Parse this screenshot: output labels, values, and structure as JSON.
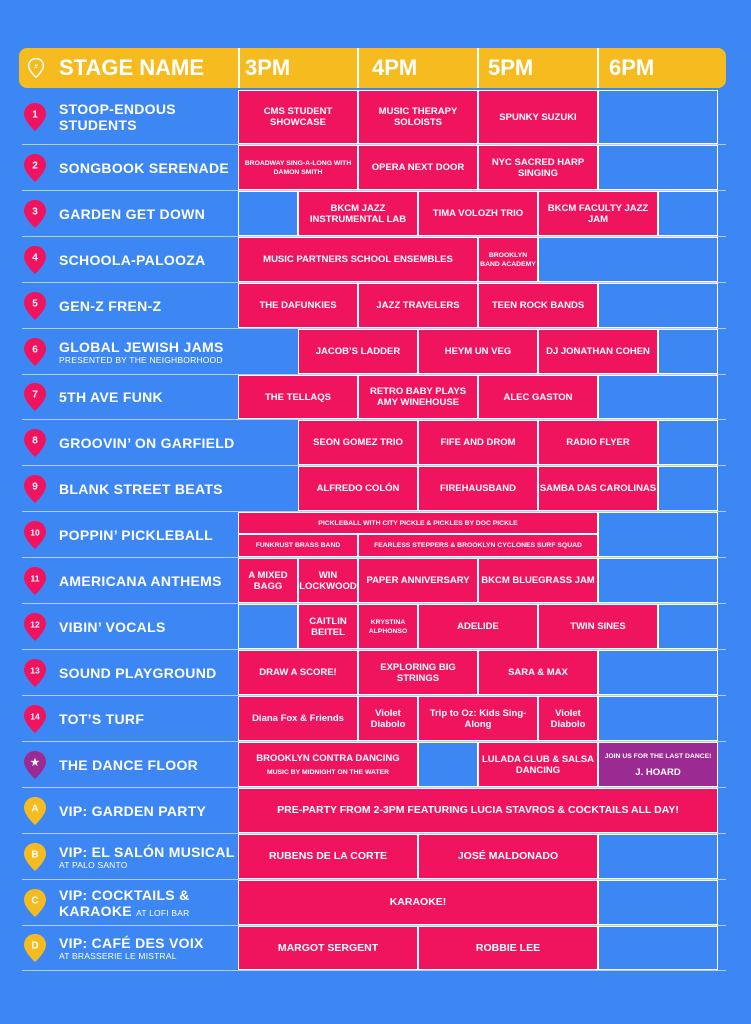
{
  "header": {
    "stage_label": "STAGE NAME",
    "hours": [
      "3PM",
      "4PM",
      "5PM",
      "6PM"
    ]
  },
  "stages": [
    {
      "num": "1",
      "name": "STOOP-ENDOUS",
      "name2": "STUDENTS",
      "sub": "",
      "sub_inline": "",
      "pin": "pink"
    },
    {
      "num": "2",
      "name": "SONGBOOK SERENADE",
      "name2": "",
      "sub": "",
      "sub_inline": "",
      "pin": "pink"
    },
    {
      "num": "3",
      "name": "GARDEN GET DOWN",
      "name2": "",
      "sub": "",
      "sub_inline": "",
      "pin": "pink"
    },
    {
      "num": "4",
      "name": "SCHOOLA-PALOOZA",
      "name2": "",
      "sub": "",
      "sub_inline": "",
      "pin": "pink"
    },
    {
      "num": "5",
      "name": "GEN-Z FREN-Z",
      "name2": "",
      "sub": "",
      "sub_inline": "",
      "pin": "pink"
    },
    {
      "num": "6",
      "name": "GLOBAL JEWISH JAMS",
      "name2": "",
      "sub": "PRESENTED BY THE NEIGHBORHOOD",
      "sub_inline": "",
      "pin": "pink"
    },
    {
      "num": "7",
      "name": "5TH AVE FUNK",
      "name2": "",
      "sub": "",
      "sub_inline": "",
      "pin": "pink"
    },
    {
      "num": "8",
      "name": "GROOVIN’ ON GARFIELD",
      "name2": "",
      "sub": "",
      "sub_inline": "",
      "pin": "pink"
    },
    {
      "num": "9",
      "name": "BLANK STREET BEATS",
      "name2": "",
      "sub": "",
      "sub_inline": "",
      "pin": "pink"
    },
    {
      "num": "10",
      "name": "POPPIN’ PICKLEBALL",
      "name2": "",
      "sub": "",
      "sub_inline": "",
      "pin": "pink"
    },
    {
      "num": "11",
      "name": "AMERICANA ANTHEMS",
      "name2": "",
      "sub": "",
      "sub_inline": "",
      "pin": "pink"
    },
    {
      "num": "12",
      "name": "VIBIN’ VOCALS",
      "name2": "",
      "sub": "",
      "sub_inline": "",
      "pin": "pink"
    },
    {
      "num": "13",
      "name": "SOUND PLAYGROUND",
      "name2": "",
      "sub": "",
      "sub_inline": "",
      "pin": "pink"
    },
    {
      "num": "14",
      "name": "TOT’S TURF",
      "name2": "",
      "sub": "",
      "sub_inline": "",
      "pin": "pink"
    },
    {
      "num": "★",
      "name": "THE DANCE FLOOR",
      "name2": "",
      "sub": "",
      "sub_inline": "",
      "pin": "purple"
    },
    {
      "num": "A",
      "name": "VIP: GARDEN PARTY",
      "name2": "",
      "sub": "",
      "sub_inline": "",
      "pin": "yellow"
    },
    {
      "num": "B",
      "name": "VIP: EL SALÓN MUSICAL",
      "name2": "",
      "sub": "AT PALO SANTO",
      "sub_inline": "",
      "pin": "yellow"
    },
    {
      "num": "C",
      "name": "VIP: COCKTAILS &",
      "name2": "KARAOKE",
      "sub": "",
      "sub_inline": "AT LOFI BAR",
      "pin": "yellow"
    },
    {
      "num": "D",
      "name": "VIP: CAFÉ DES VOIX",
      "name2": "",
      "sub": "AT BRASSERIE LE MISTRAL",
      "sub_inline": "",
      "pin": "yellow"
    }
  ],
  "events": {
    "r1": [
      "CMS STUDENT SHOWCASE",
      "MUSIC THERAPY SOLOISTS",
      "SPUNKY SUZUKI"
    ],
    "r2": [
      "BROADWAY SING-A-LONG WITH DAMON SMITH",
      "OPERA NEXT DOOR",
      "NYC SACRED HARP SINGING"
    ],
    "r3": [
      "BKCM JAZZ INSTRUMENTAL LAB",
      "TIMA VOLOZH TRIO",
      "BKCM FACULTY JAZZ JAM"
    ],
    "r4": [
      "MUSIC PARTNERS SCHOOL ENSEMBLES",
      "BROOKLYN BAND ACADEMY"
    ],
    "r5": [
      "THE DAFUNKIES",
      "JAZZ TRAVELERS",
      "TEEN ROCK BANDS"
    ],
    "r6": [
      "JACOB’S LADDER",
      "HEYM UN VEG",
      "DJ JONATHAN COHEN"
    ],
    "r7": [
      "THE TELLAQS",
      "RETRO BABY PLAYS AMY WINEHOUSE",
      "ALEC GASTON"
    ],
    "r8": [
      "SEON GOMEZ TRIO",
      "FIFE AND DROM",
      "RADIO FLYER"
    ],
    "r9": [
      "ALFREDO COLÓN",
      "FIREHAUSBAND",
      "SAMBA DAS CAROLINAS"
    ],
    "r10": [
      "PICKLEBALL WITH CITY PICKLE & PICKLES BY DOC PICKLE",
      "FUNKRUST BRASS BAND",
      "FEARLESS STEPPERS & BROOKLYN CYCLONES SURF SQUAD"
    ],
    "r11": [
      "A MIXED BAGG",
      "WIN LOCKWOOD",
      "PAPER ANNIVERSARY",
      "BKCM BLUEGRASS JAM"
    ],
    "r12": [
      "CAITLIN BEITEL",
      "KRYSTINA ALPHONSO",
      "ADELIDE",
      "TWIN SINES"
    ],
    "r13": [
      "DRAW A SCORE!",
      "EXPLORING BIG STRINGS",
      "SARA & MAX"
    ],
    "r14": [
      "Diana Fox & Friends",
      "Violet Diabolo",
      "Trip to Oz: Kids Sing-Along",
      "Violet Diabolo"
    ],
    "r15": [
      "BROOKLYN CONTRA DANCING",
      "MUSIC BY MIDNIGHT ON THE WATER",
      "LULADA CLUB & SALSA DANCING",
      "JOIN US FOR THE LAST DANCE!",
      "J. HOARD"
    ],
    "r16": [
      "PRE-PARTY FROM 2-3PM FEATURING LUCIA STAVROS & COCKTAILS ALL DAY!"
    ],
    "r17": [
      "RUBENS DE LA CORTE",
      "JOSÉ MALDONADO"
    ],
    "r18": [
      "KARAOKE!"
    ],
    "r19": [
      "MARGOT SERGENT",
      "ROBBIE LEE"
    ]
  },
  "colors": {
    "background": "#3d87f5",
    "header": "#f6bb1e",
    "event": "#f0145f",
    "dance_special": "#9b2a93",
    "pin_vip": "#f6bb1e"
  }
}
